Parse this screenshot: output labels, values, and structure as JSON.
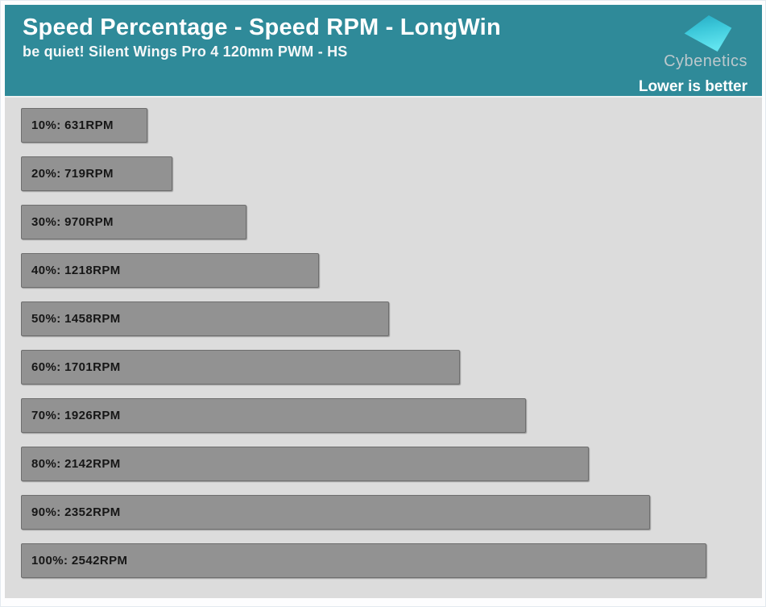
{
  "header": {
    "title": "Speed Percentage - Speed RPM - LongWin",
    "subtitle": "be quiet! Silent Wings Pro 4 120mm PWM - HS",
    "brand": "Cybenetics",
    "note": "Lower is better"
  },
  "colors": {
    "header_bg": "#2f8a99",
    "body_bg": "#dcdcdc",
    "bar_fill": "#929292",
    "bar_border": "#6e6e6e",
    "bar_text": "#161616",
    "title_text": "#ffffff",
    "brand_text": "#bcc8cc",
    "logo_top": "#25a9c2",
    "logo_bottom": "#62e4ef"
  },
  "chart_data": {
    "type": "bar",
    "orientation": "horizontal",
    "title": "Speed Percentage - Speed RPM - LongWin",
    "subtitle": "be quiet! Silent Wings Pro 4 120mm PWM - HS",
    "annotation": "Lower is better",
    "unit": "RPM",
    "categories": [
      "10%",
      "20%",
      "30%",
      "40%",
      "50%",
      "60%",
      "70%",
      "80%",
      "90%",
      "100%"
    ],
    "values": [
      631,
      719,
      970,
      1218,
      1458,
      1701,
      1926,
      2142,
      2352,
      2542
    ],
    "labels": [
      "10%: 631RPM",
      "20%: 719RPM",
      "30%: 970RPM",
      "40%: 1218RPM",
      "50%: 1458RPM",
      "60%: 1701RPM",
      "70%: 1926RPM",
      "80%: 2142RPM",
      "90%: 2352RPM",
      "100%: 2542RPM"
    ],
    "xmin": 200,
    "xmax": 2542,
    "max_bar_pct": 94.5,
    "grid": false,
    "legend": false,
    "bar_value_labels": "inside-left"
  }
}
